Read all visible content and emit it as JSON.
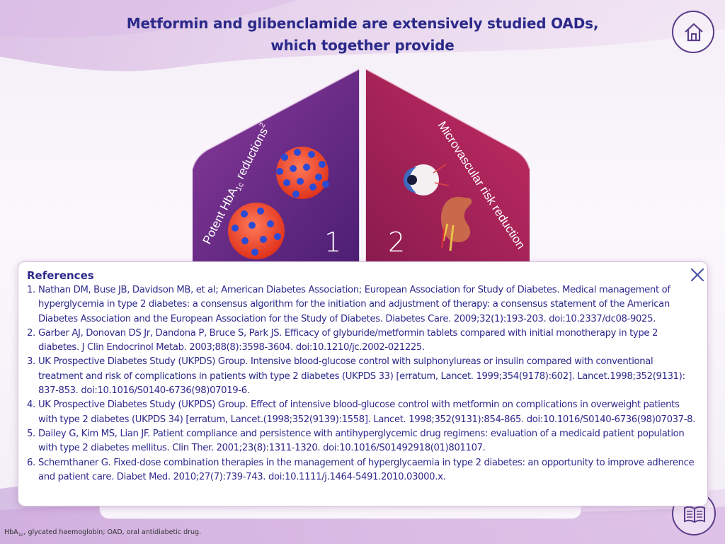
{
  "header": {
    "title_line1": "Metformin and glibenclamide are extensively studied OADs,",
    "title_line2": "which together provide"
  },
  "diagram": {
    "left_segment_number": "1",
    "right_segment_number": "2",
    "left_label_main": "Potent HbA",
    "left_label_sub": "1c",
    "left_label_end": " reductions",
    "left_label_sup": "2",
    "right_label": "Microvascular risk reduction"
  },
  "references": {
    "title": "References",
    "items": [
      {
        "num": "1.",
        "text": "Nathan DM, Buse JB, Davidson MB, et al; American Diabetes Association; European Association for Study of Diabetes. Medical management of hyperglycemia in type 2 diabetes: a consensus algorithm for the initiation and adjustment of therapy: a consensus statement of the American Diabetes Association and the European Association for the Study of Diabetes. Diabetes Care. 2009;32(1):193-203. doi:10.2337/dc08-9025."
      },
      {
        "num": "2.",
        "text": "Garber AJ, Donovan DS Jr, Dandona P, Bruce S, Park JS. Efficacy of glyburide/metformin tablets compared with initial monotherapy in type 2 diabetes. J Clin Endocrinol Metab. 2003;88(8):3598-3604. doi:10.1210/jc.2002-021225."
      },
      {
        "num": "3.",
        "text": "UK Prospective Diabetes Study (UKPDS) Group. Intensive blood-glucose control with sulphonylureas or insulin compared with conventional treatment and risk of complications in patients with type 2 diabetes (UKPDS 33) [erratum, Lancet. 1999;354(9178):602]. Lancet.1998;352(9131): 837-853. doi:10.1016/S0140-6736(98)07019-6."
      },
      {
        "num": "4.",
        "text": "UK Prospective Diabetes Study (UKPDS) Group. Effect of intensive blood-glucose control with metformin on complications in overweight patients with type 2 diabetes (UKPDS 34) [erratum, Lancet.(1998;352(9139):1558]. Lancet. 1998;352(9131):854-865. doi:10.1016/S0140-6736(98)07037-8."
      },
      {
        "num": "5.",
        "text": "Dailey G, Kim MS, Lian JF. Patient compliance and persistence with antihyperglycemic drug regimens: evaluation of a medicaid patient population with type 2 diabetes mellitus. Clin Ther. 2001;23(8):1311-1320. doi:10.1016/S01492918(01)801107."
      },
      {
        "num": "6.",
        "text": "Schernthaner G. Fixed-dose combination therapies in the management of hyperglycaemia in type 2 diabetes: an opportunity to improve adherence and patient care. Diabet Med. 2010;27(7):739-743. doi:10.1111/j.1464-5491.2010.03000.x."
      }
    ]
  },
  "footnote": {
    "part1": "HbA",
    "sub": "1c",
    "part2": ", glycated haemoglobin; OAD, oral antidiabetic drug."
  },
  "icons": [
    "home-icon",
    "close-icon",
    "book-icon",
    "eye-icon",
    "kidney-icon",
    "red-blood-cell-icon"
  ],
  "colors": {
    "title": "#2b2a8a",
    "left_segment": "#6a2a86",
    "right_segment": "#b0245e",
    "panel_border": "#d9c3de"
  }
}
